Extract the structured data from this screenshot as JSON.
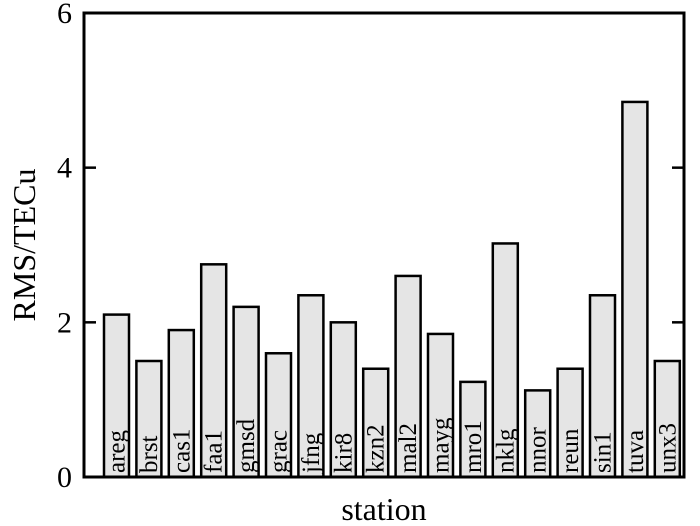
{
  "chart_data": {
    "type": "bar",
    "xlabel": "station",
    "ylabel": "RMS/TECu",
    "ylim": [
      0,
      6
    ],
    "yticks": [
      0,
      2,
      4,
      6
    ],
    "grid": false,
    "categories": [
      "areg",
      "brst",
      "cas1",
      "faa1",
      "gmsd",
      "grac",
      "jfng",
      "kir8",
      "kzn2",
      "mal2",
      "mayg",
      "mro1",
      "nklg",
      "nnor",
      "reun",
      "sin1",
      "tuva",
      "unx3"
    ],
    "values": [
      2.1,
      1.5,
      1.9,
      2.75,
      2.2,
      1.6,
      2.35,
      2.0,
      1.4,
      2.6,
      1.85,
      1.23,
      3.02,
      1.12,
      1.4,
      2.35,
      4.85,
      1.5
    ],
    "colors": {
      "bar_fill": "#e5e5e5",
      "bar_stroke": "#000000"
    }
  }
}
